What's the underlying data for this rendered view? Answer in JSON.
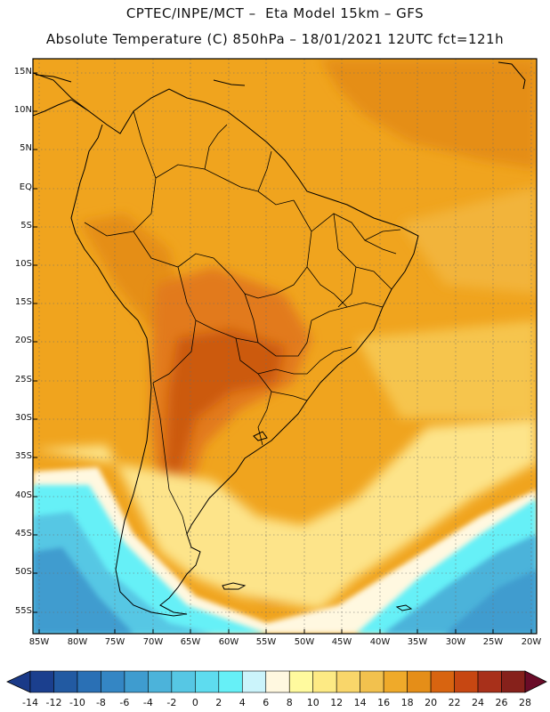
{
  "header": {
    "line1": "CPTEC/INPE/MCT –  Eta Model 15km – GFS",
    "line2": "Absolute Temperature (C) 850hPa – 18/01/2021 12UTC fct=121h"
  },
  "map": {
    "lat_labels": [
      "15N",
      "10N",
      "5N",
      "EQ",
      "5S",
      "10S",
      "15S",
      "20S",
      "25S",
      "30S",
      "35S",
      "40S",
      "45S",
      "50S",
      "55S"
    ],
    "lon_labels": [
      "85W",
      "80W",
      "75W",
      "70W",
      "65W",
      "60W",
      "55W",
      "50W",
      "45W",
      "40W",
      "35W",
      "30W",
      "25W",
      "20W"
    ],
    "colors": {
      "background_warm": "#f0a41e",
      "hot": "#e27a1c",
      "very_hot": "#cc5a10",
      "cool_yellow": "#fde48a",
      "cold_cyan": "#58e8f8",
      "colder": "#40a8d8",
      "coldest": "#2f84c4",
      "coast": "#000000"
    }
  },
  "colorbar": {
    "labels": [
      "-14",
      "-12",
      "-10",
      "-8",
      "-6",
      "-4",
      "-2",
      "0",
      "2",
      "4",
      "6",
      "8",
      "10",
      "12",
      "14",
      "16",
      "18",
      "20",
      "22",
      "24",
      "26",
      "28"
    ],
    "colors": [
      "#1b3f8e",
      "#225aa2",
      "#2a70b5",
      "#3486c4",
      "#3f9ccf",
      "#4cb3da",
      "#56c7e4",
      "#5edcef",
      "#66f0f7",
      "#cbf4fb",
      "#fff8e0",
      "#fffa9e",
      "#fdea84",
      "#f9d66a",
      "#f2c14e",
      "#efaa2a",
      "#e58e18",
      "#d86410",
      "#c74712",
      "#a8301a",
      "#86211b"
    ]
  }
}
